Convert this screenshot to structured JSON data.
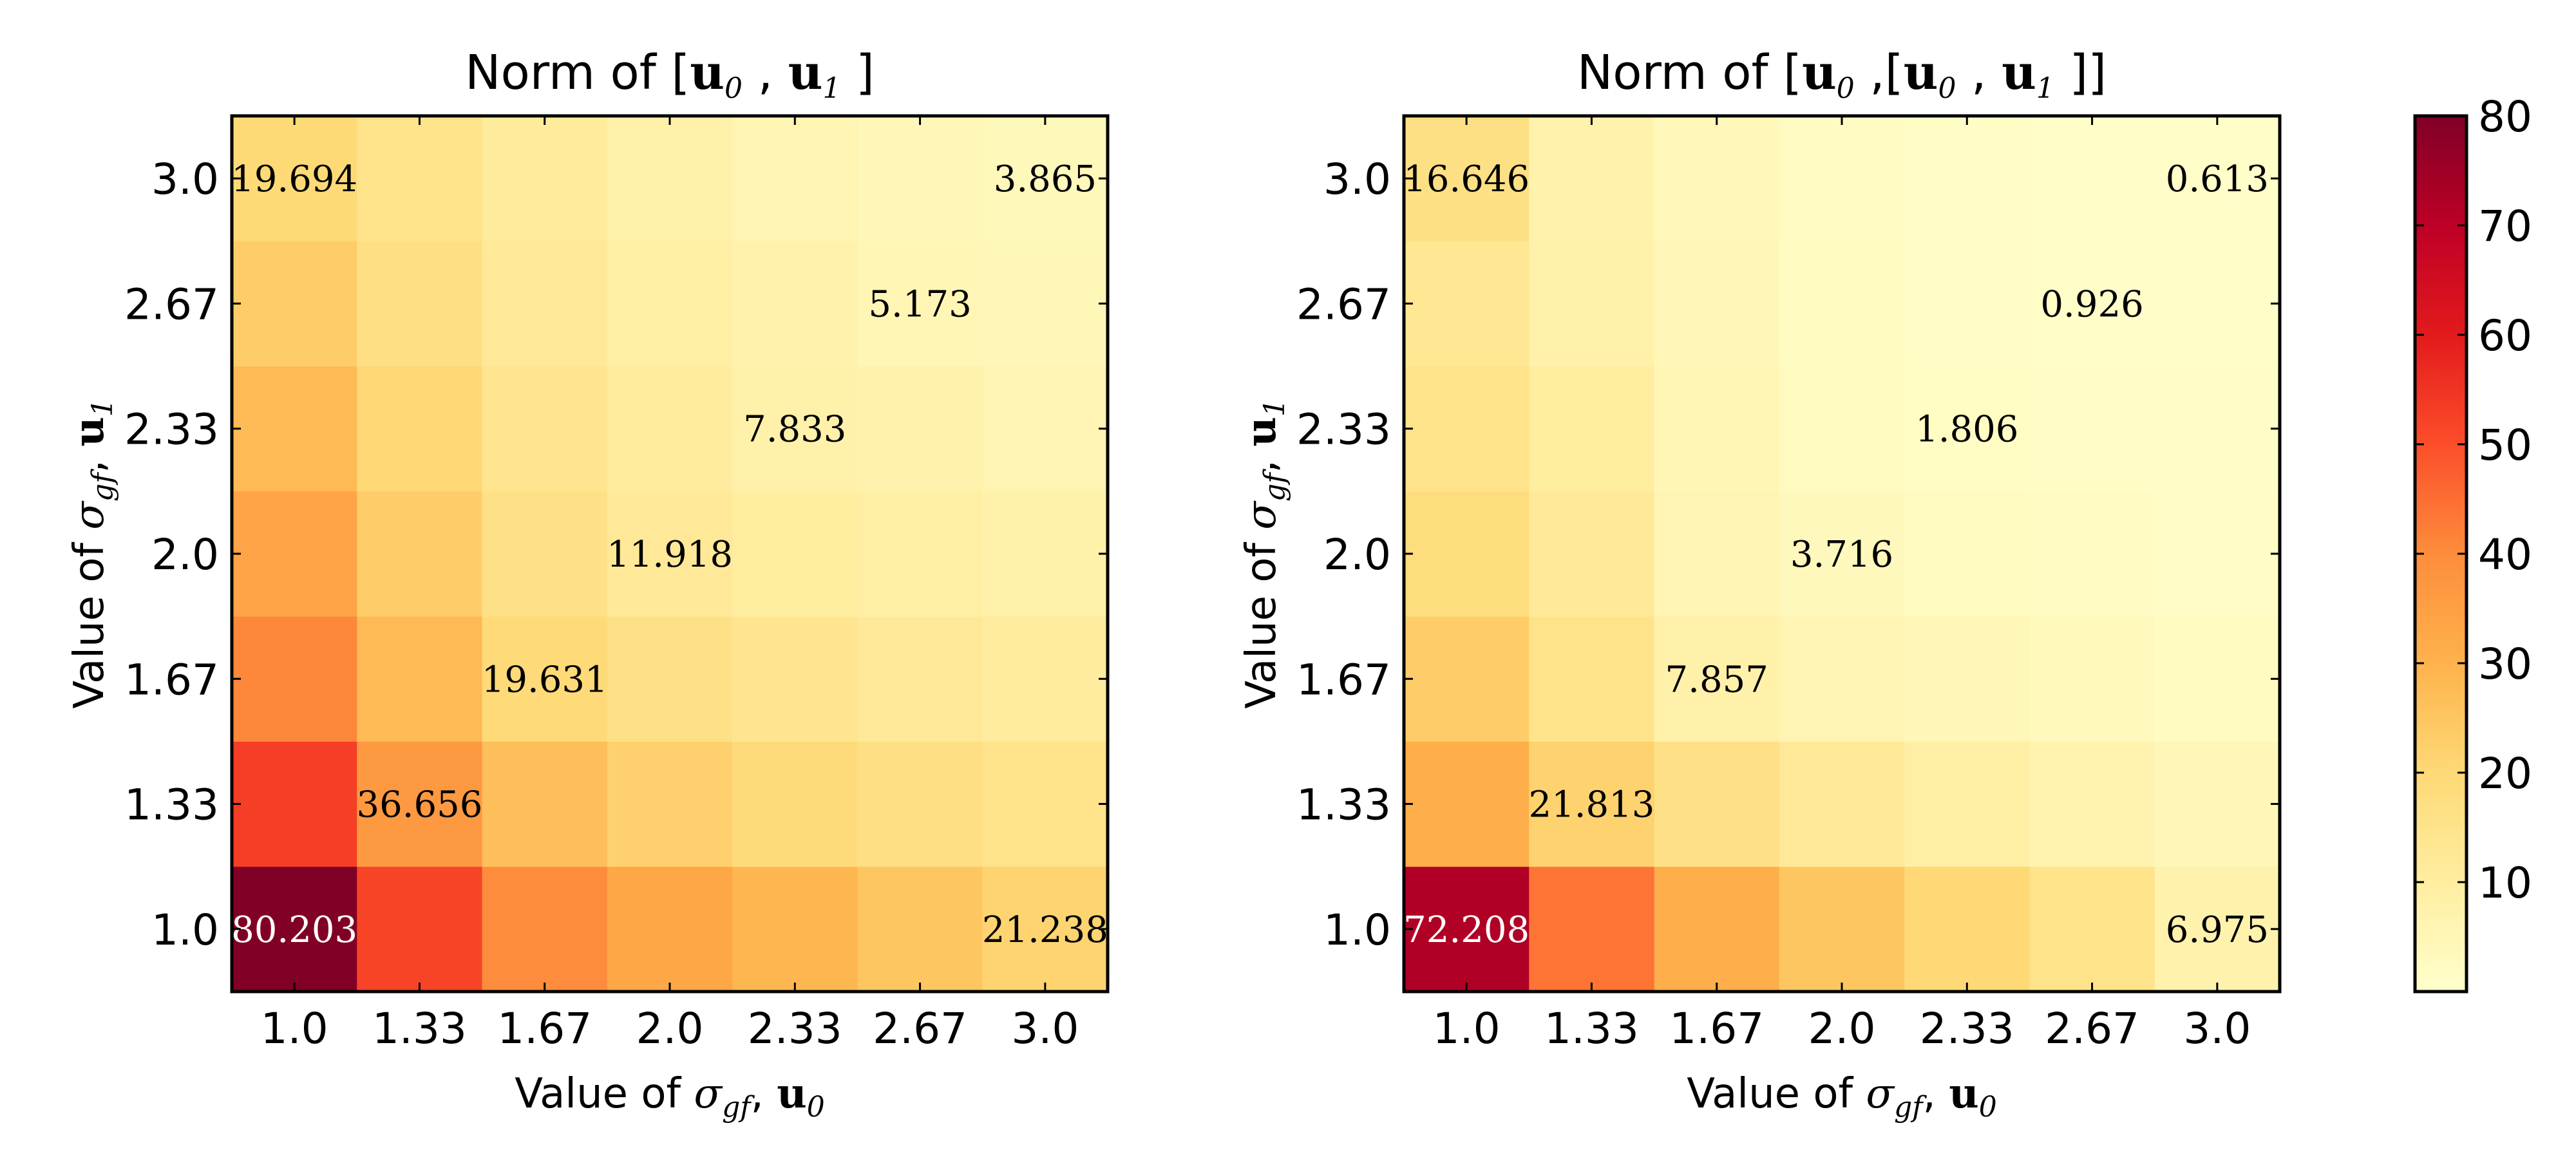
{
  "chart_data": [
    {
      "type": "heatmap",
      "title": "Norm of [u0 , u1 ]",
      "xlabel": "Value of σgf, u0",
      "ylabel": "Value of σgf, u1",
      "x": [
        "1.0",
        "1.33",
        "1.67",
        "2.0",
        "2.33",
        "2.67",
        "3.0"
      ],
      "y": [
        "1.0",
        "1.33",
        "1.67",
        "2.0",
        "2.33",
        "2.67",
        "3.0"
      ],
      "values": [
        [
          80.203,
          52.0,
          40.0,
          33.0,
          29.0,
          25.0,
          21.238
        ],
        [
          53.0,
          36.656,
          27.0,
          22.0,
          19.0,
          17.0,
          15.0
        ],
        [
          41.0,
          28.0,
          19.631,
          16.0,
          14.0,
          12.0,
          10.5
        ],
        [
          34.0,
          23.0,
          16.0,
          11.918,
          10.0,
          9.0,
          8.0
        ],
        [
          28.0,
          20.0,
          14.0,
          10.5,
          7.833,
          7.0,
          6.0
        ],
        [
          23.0,
          17.0,
          12.0,
          9.0,
          7.0,
          5.173,
          4.5
        ],
        [
          19.694,
          15.0,
          11.0,
          8.0,
          6.0,
          4.5,
          3.865
        ]
      ],
      "annotations": [
        {
          "x": "1.0",
          "y": "3.0",
          "text": "19.694"
        },
        {
          "x": "3.0",
          "y": "3.0",
          "text": "3.865"
        },
        {
          "x": "2.67",
          "y": "2.67",
          "text": "5.173"
        },
        {
          "x": "2.33",
          "y": "2.33",
          "text": "7.833"
        },
        {
          "x": "2.0",
          "y": "2.0",
          "text": "11.918"
        },
        {
          "x": "1.67",
          "y": "1.67",
          "text": "19.631"
        },
        {
          "x": "1.33",
          "y": "1.33",
          "text": "36.656"
        },
        {
          "x": "1.0",
          "y": "1.0",
          "text": "80.203"
        },
        {
          "x": "3.0",
          "y": "1.0",
          "text": "21.238"
        }
      ]
    },
    {
      "type": "heatmap",
      "title": "Norm of [u0 ,[u0 , u1 ]]",
      "xlabel": "Value of σgf, u0",
      "ylabel": "Value of σgf, u1",
      "x": [
        "1.0",
        "1.33",
        "1.67",
        "2.0",
        "2.33",
        "2.67",
        "3.0"
      ],
      "y": [
        "1.0",
        "1.33",
        "1.67",
        "2.0",
        "2.33",
        "2.67",
        "3.0"
      ],
      "values": [
        [
          72.208,
          44.0,
          31.0,
          25.0,
          20.0,
          15.0,
          6.975
        ],
        [
          31.0,
          21.813,
          16.0,
          12.0,
          9.0,
          6.5,
          4.5
        ],
        [
          23.0,
          15.0,
          7.857,
          6.0,
          4.5,
          3.5,
          2.5
        ],
        [
          18.0,
          12.0,
          6.0,
          3.716,
          2.8,
          2.0,
          1.5
        ],
        [
          15.0,
          10.0,
          5.0,
          3.0,
          1.806,
          1.4,
          1.1
        ],
        [
          13.0,
          8.0,
          4.5,
          2.5,
          1.5,
          0.926,
          0.8
        ],
        [
          16.646,
          7.0,
          4.0,
          2.2,
          1.3,
          0.9,
          0.613
        ]
      ],
      "annotations": [
        {
          "x": "1.0",
          "y": "3.0",
          "text": "16.646"
        },
        {
          "x": "3.0",
          "y": "3.0",
          "text": "0.613"
        },
        {
          "x": "2.67",
          "y": "2.67",
          "text": "0.926"
        },
        {
          "x": "2.33",
          "y": "2.33",
          "text": "1.806"
        },
        {
          "x": "2.0",
          "y": "2.0",
          "text": "3.716"
        },
        {
          "x": "1.67",
          "y": "1.67",
          "text": "7.857"
        },
        {
          "x": "1.33",
          "y": "1.33",
          "text": "21.813"
        },
        {
          "x": "1.0",
          "y": "1.0",
          "text": "72.208"
        },
        {
          "x": "3.0",
          "y": "1.0",
          "text": "6.975"
        }
      ]
    }
  ],
  "colorbar": {
    "min": 0,
    "max": 80,
    "ticks": [
      "10",
      "20",
      "30",
      "40",
      "50",
      "60",
      "70",
      "80"
    ],
    "colormap": "YlOrRd",
    "stops": [
      "#ffffcc",
      "#ffeda0",
      "#fed976",
      "#feb24c",
      "#fd8d3c",
      "#fc4e2a",
      "#e31a1c",
      "#bd0026",
      "#800026"
    ]
  }
}
